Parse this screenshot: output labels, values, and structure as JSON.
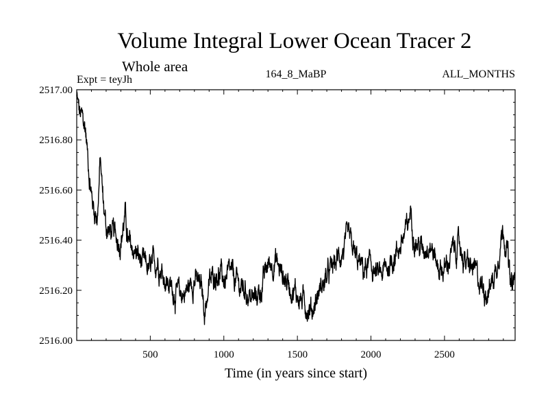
{
  "chart_data": {
    "type": "line",
    "title": "Volume Integral Lower Ocean Tracer 2",
    "subtitle": "Whole area",
    "left_label": "Expt = teyJh",
    "center_label": "164_8_MaBP",
    "right_label": "ALL_MONTHS",
    "xlabel": "Time (in years since start)",
    "ylabel": "",
    "xlim": [
      0,
      2980
    ],
    "ylim": [
      2516.0,
      2517.0
    ],
    "x_ticks": [
      500,
      1000,
      1500,
      2000,
      2500
    ],
    "x_tick_labels": [
      "500",
      "1000",
      "1500",
      "2000",
      "2500"
    ],
    "y_ticks": [
      2516.0,
      2516.2,
      2516.4,
      2516.6,
      2516.8,
      2517.0
    ],
    "y_tick_labels": [
      "2516.00",
      "2516.20",
      "2516.40",
      "2516.60",
      "2516.80",
      "2517.00"
    ],
    "grid": false,
    "line_color": "#000000",
    "series": [
      {
        "name": "Volume Integral Lower Ocean Tracer 2",
        "x": [
          0,
          20,
          40,
          60,
          80,
          100,
          120,
          140,
          150,
          160,
          180,
          200,
          250,
          300,
          330,
          350,
          400,
          450,
          500,
          550,
          600,
          650,
          700,
          750,
          800,
          850,
          870,
          900,
          950,
          1000,
          1050,
          1100,
          1150,
          1200,
          1250,
          1300,
          1350,
          1400,
          1450,
          1500,
          1550,
          1600,
          1650,
          1700,
          1750,
          1800,
          1850,
          1900,
          1950,
          2000,
          2050,
          2100,
          2150,
          2200,
          2250,
          2270,
          2300,
          2350,
          2400,
          2450,
          2500,
          2550,
          2600,
          2650,
          2700,
          2750,
          2800,
          2850,
          2880,
          2900,
          2930,
          2950,
          2980
        ],
        "y": [
          2516.97,
          2516.9,
          2516.88,
          2516.84,
          2516.7,
          2516.58,
          2516.52,
          2516.5,
          2516.6,
          2516.72,
          2516.55,
          2516.45,
          2516.42,
          2516.4,
          2516.5,
          2516.38,
          2516.35,
          2516.3,
          2516.28,
          2516.32,
          2516.25,
          2516.2,
          2516.18,
          2516.2,
          2516.25,
          2516.2,
          2516.12,
          2516.22,
          2516.28,
          2516.24,
          2516.26,
          2516.22,
          2516.2,
          2516.16,
          2516.2,
          2516.3,
          2516.32,
          2516.26,
          2516.22,
          2516.18,
          2516.15,
          2516.12,
          2516.2,
          2516.25,
          2516.3,
          2516.35,
          2516.4,
          2516.32,
          2516.28,
          2516.3,
          2516.25,
          2516.28,
          2516.33,
          2516.38,
          2516.45,
          2516.52,
          2516.4,
          2516.36,
          2516.4,
          2516.3,
          2516.28,
          2516.35,
          2516.38,
          2516.3,
          2516.28,
          2516.22,
          2516.2,
          2516.28,
          2516.4,
          2516.45,
          2516.35,
          2516.2,
          2516.25
        ]
      }
    ]
  }
}
